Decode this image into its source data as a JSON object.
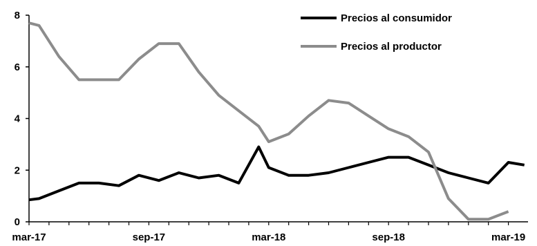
{
  "chart_data": {
    "type": "line",
    "title": "",
    "xlabel": "",
    "ylabel": "",
    "ylim": [
      0,
      8
    ],
    "yticks": [
      0,
      2,
      4,
      6,
      8
    ],
    "xticks": [
      {
        "label": "mar-17",
        "index": 0
      },
      {
        "label": "sep-17",
        "index": 6
      },
      {
        "label": "mar-18",
        "index": 12
      },
      {
        "label": "sep-18",
        "index": 18
      },
      {
        "label": "mar-19",
        "index": 24
      }
    ],
    "grid": false,
    "legend_position": "top-right",
    "x_range": [
      0,
      24.8
    ],
    "series": [
      {
        "name": "Precios al consumidor",
        "color": "#000000",
        "x": [
          0,
          0.5,
          1.5,
          2.5,
          3.5,
          4.5,
          5.5,
          6.5,
          7.5,
          8.5,
          9.5,
          10.5,
          11.5,
          12.0,
          13.0,
          14.0,
          15.0,
          16.0,
          17.0,
          18.0,
          19.0,
          20.0,
          21.0,
          22.0,
          23.0,
          24.0,
          24.8
        ],
        "values": [
          0.85,
          0.9,
          1.2,
          1.5,
          1.5,
          1.4,
          1.8,
          1.6,
          1.9,
          1.7,
          1.8,
          1.5,
          2.9,
          2.1,
          1.8,
          1.8,
          1.9,
          2.1,
          2.3,
          2.5,
          2.5,
          2.2,
          1.9,
          1.7,
          1.5,
          2.3,
          2.2
        ]
      },
      {
        "name": "Precios al productor",
        "color": "#8c8c8c",
        "x": [
          0,
          0.5,
          1.5,
          2.5,
          3.5,
          4.5,
          5.5,
          6.5,
          7.5,
          8.5,
          9.5,
          10.5,
          11.5,
          12.0,
          13.0,
          14.0,
          15.0,
          16.0,
          17.0,
          18.0,
          19.0,
          20.0,
          21.0,
          22.0,
          23.0,
          24.0
        ],
        "values": [
          7.7,
          7.6,
          6.4,
          5.5,
          5.5,
          5.5,
          6.3,
          6.9,
          6.9,
          5.8,
          4.9,
          4.3,
          3.7,
          3.1,
          3.4,
          4.1,
          4.7,
          4.6,
          4.1,
          3.6,
          3.3,
          2.7,
          0.9,
          0.1,
          0.1,
          0.4
        ]
      }
    ]
  }
}
